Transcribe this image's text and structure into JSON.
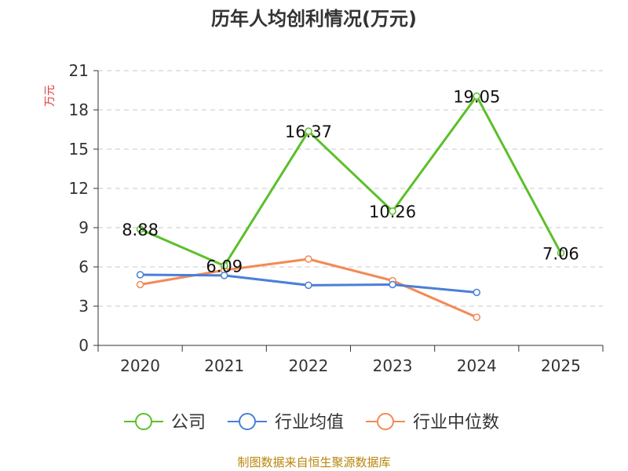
{
  "chart_data": {
    "type": "line",
    "title": "历年人均创利情况(万元)",
    "ylabel": "万元",
    "ylim": [
      0,
      21
    ],
    "yticks": [
      0,
      3,
      6,
      9,
      12,
      15,
      18,
      21
    ],
    "categories": [
      "2020",
      "2021",
      "2022",
      "2023",
      "2024",
      "2025"
    ],
    "grid": true,
    "legend_position": "bottom",
    "series": [
      {
        "name": "公司",
        "color": "#5cbf2a",
        "values": [
          8.88,
          6.09,
          16.37,
          10.26,
          19.05,
          7.06
        ],
        "labels": [
          "8.88",
          "6.09",
          "16.37",
          "10.26",
          "19.05",
          "7.06"
        ]
      },
      {
        "name": "行业均值",
        "color": "#4a7fd6",
        "values": [
          5.4,
          5.35,
          4.6,
          4.65,
          4.05,
          null
        ]
      },
      {
        "name": "行业中位数",
        "color": "#f28a56",
        "values": [
          4.65,
          5.75,
          6.6,
          4.95,
          2.15,
          null
        ]
      }
    ]
  },
  "source": "制图数据来自恒生聚源数据库"
}
